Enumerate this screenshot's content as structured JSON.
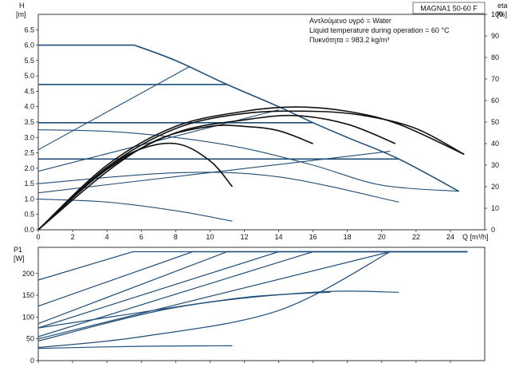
{
  "model": "MAGNA1 50-60 F",
  "info_lines": [
    "Αντλούμενο υγρό = Water",
    "Liquid temperature during operation = 60 °C",
    "Πυκνότητα = 983.2 kg/m³"
  ],
  "chart_data": [
    {
      "type": "line",
      "panel": "head",
      "ylabel": "H",
      "yunit": "[m]",
      "y2label": "eta",
      "y2unit": "[%]",
      "xlabel": "Q [m³/h]",
      "xlim": [
        0,
        26
      ],
      "ylim": [
        0,
        7.0
      ],
      "y2lim": [
        0,
        100
      ],
      "grid": false,
      "x_ticks": [
        "0",
        "2",
        "4",
        "6",
        "8",
        "10",
        "12",
        "14",
        "16",
        "18",
        "20",
        "22",
        "24"
      ],
      "y_ticks": [
        "0.0",
        "0.5",
        "1.0",
        "1.5",
        "2.0",
        "2.5",
        "3.0",
        "3.5",
        "4.0",
        "4.5",
        "5.0",
        "5.5",
        "6.0",
        "6.5"
      ],
      "y2_ticks": [
        "0",
        "10",
        "20",
        "30",
        "40",
        "50",
        "60",
        "70",
        "80",
        "90",
        "100"
      ],
      "series": [
        {
          "kind": "constant-curve",
          "color": "#1f4e79",
          "x": [
            0,
            5.6
          ],
          "y": [
            6.0,
            6.0
          ]
        },
        {
          "kind": "constant-curve",
          "color": "#1f4e79",
          "x": [
            0,
            11
          ],
          "y": [
            4.72,
            4.72
          ]
        },
        {
          "kind": "constant-curve",
          "color": "#1f4e79",
          "x": [
            0,
            16
          ],
          "y": [
            3.48,
            3.48
          ]
        },
        {
          "kind": "constant-curve",
          "color": "#1f4e79",
          "x": [
            0,
            21
          ],
          "y": [
            2.3,
            2.3
          ]
        },
        {
          "kind": "max-curve",
          "color": "#1f4e79",
          "x": [
            5.6,
            8,
            11,
            14,
            16,
            18,
            21,
            24.5
          ],
          "y": [
            6.0,
            5.5,
            4.72,
            4.0,
            3.48,
            3.0,
            2.3,
            1.25
          ]
        },
        {
          "kind": "proportional-curve",
          "color": "#1f4e79",
          "x": [
            0,
            8.8
          ],
          "y": [
            2.6,
            5.3
          ]
        },
        {
          "kind": "proportional-curve",
          "color": "#1f4e79",
          "x": [
            0,
            14
          ],
          "y": [
            1.9,
            3.9
          ]
        },
        {
          "kind": "proportional-curve",
          "color": "#1f4e79",
          "x": [
            0,
            20.5
          ],
          "y": [
            1.2,
            2.55
          ]
        },
        {
          "kind": "min-curve",
          "color": "#1f4e79",
          "x": [
            0,
            4,
            8,
            11.3
          ],
          "y": [
            1.0,
            0.9,
            0.62,
            0.28
          ]
        },
        {
          "kind": "head-curve",
          "color": "#1f4e79",
          "x": [
            0,
            4,
            8,
            12,
            16,
            20,
            24.5
          ],
          "y": [
            3.25,
            3.2,
            3.0,
            2.65,
            2.1,
            1.45,
            1.25
          ]
        },
        {
          "kind": "head-curve",
          "color": "#1f4e79",
          "x": [
            0,
            8,
            14,
            21
          ],
          "y": [
            1.5,
            1.85,
            1.72,
            0.9
          ]
        },
        {
          "kind": "efficiency-curve",
          "color": "#111111",
          "x": [
            0,
            4,
            8,
            12,
            15,
            18,
            21,
            24.8
          ],
          "eta": [
            0,
            30,
            48,
            55,
            57,
            55,
            49,
            35
          ]
        },
        {
          "kind": "efficiency-curve",
          "color": "#111111",
          "x": [
            0,
            4,
            8,
            12,
            16,
            19,
            22,
            24.8
          ],
          "eta": [
            0,
            29,
            47,
            54,
            55,
            53,
            47,
            35
          ]
        },
        {
          "kind": "efficiency-curve",
          "color": "#111111",
          "x": [
            0,
            4,
            8,
            12,
            15,
            18,
            20.8
          ],
          "eta": [
            0,
            28,
            45,
            51,
            53,
            49,
            40
          ]
        },
        {
          "kind": "efficiency-curve",
          "color": "#111111",
          "x": [
            0,
            4,
            7,
            10,
            12,
            14,
            16
          ],
          "eta": [
            0,
            27,
            42,
            48,
            48,
            46,
            40
          ]
        },
        {
          "kind": "efficiency-curve",
          "color": "#111111",
          "x": [
            0,
            3,
            5.5,
            8,
            10,
            11.3
          ],
          "eta": [
            0,
            22,
            36,
            40,
            32,
            20
          ]
        }
      ]
    },
    {
      "type": "line",
      "panel": "power",
      "ylabel": "P1",
      "yunit": "[W]",
      "xlim": [
        0,
        26
      ],
      "ylim": [
        0,
        260
      ],
      "grid": false,
      "y_ticks": [
        "0",
        "50",
        "100",
        "150",
        "200"
      ],
      "series": [
        {
          "kind": "power-curve",
          "color": "#1f4e79",
          "x": [
            0,
            5.5,
            25
          ],
          "y": [
            185,
            250,
            250
          ]
        },
        {
          "kind": "power-curve",
          "color": "#1f4e79",
          "x": [
            0,
            9,
            25
          ],
          "y": [
            125,
            250,
            250
          ]
        },
        {
          "kind": "power-curve",
          "color": "#1f4e79",
          "x": [
            0,
            11,
            25
          ],
          "y": [
            85,
            250,
            250
          ]
        },
        {
          "kind": "power-curve",
          "color": "#1f4e79",
          "x": [
            0,
            14,
            25
          ],
          "y": [
            75,
            250,
            250
          ]
        },
        {
          "kind": "power-curve",
          "color": "#1f4e79",
          "x": [
            0,
            16,
            25
          ],
          "y": [
            55,
            250,
            250
          ]
        },
        {
          "kind": "power-curve",
          "color": "#1f4e79",
          "x": [
            0,
            20.5,
            25
          ],
          "y": [
            50,
            250,
            250
          ]
        },
        {
          "kind": "power-curve",
          "color": "#1f4e79",
          "x": [
            0,
            8,
            16,
            21
          ],
          "y": [
            45,
            122,
            157,
            157
          ]
        },
        {
          "kind": "power-curve",
          "color": "#1f4e79",
          "x": [
            0,
            6,
            11.3
          ],
          "y": [
            28,
            33,
            34
          ]
        },
        {
          "kind": "power-curve",
          "color": "#1f4e79",
          "x": [
            0,
            6,
            14,
            20.5
          ],
          "y": [
            30,
            55,
            115,
            250
          ]
        },
        {
          "kind": "power-curve",
          "color": "#1f4e79",
          "x": [
            0,
            5,
            12,
            17
          ],
          "y": [
            75,
            105,
            145,
            157
          ]
        }
      ]
    }
  ]
}
